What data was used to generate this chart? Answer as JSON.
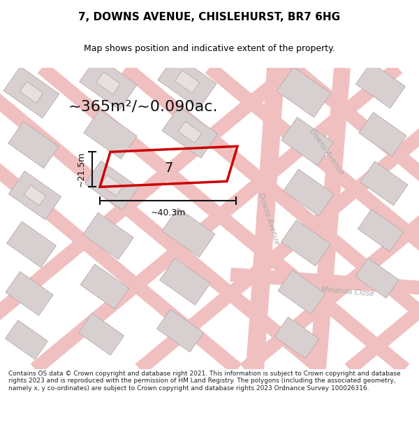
{
  "title": "7, DOWNS AVENUE, CHISLEHURST, BR7 6HG",
  "subtitle": "Map shows position and indicative extent of the property.",
  "area_text": "~365m²/~0.090ac.",
  "dim_width": "~40.3m",
  "dim_height": "~21.5m",
  "label": "7",
  "footer": "Contains OS data © Crown copyright and database right 2021. This information is subject to Crown copyright and database rights 2023 and is reproduced with the permission of HM Land Registry. The polygons (including the associated geometry, namely x, y co-ordinates) are subject to Crown copyright and database rights 2023 Ordnance Survey 100026316.",
  "bg_color": "#ffffff",
  "map_bg": "#f2eded",
  "road_color": "#f0c0c0",
  "building_fill": "#d8d0d0",
  "building_edge": "#b8a8a8",
  "plot_color": "#cc0000",
  "street_label_color": "#aaaaaa",
  "title_color": "#000000",
  "footer_color": "#222222",
  "dim_color": "#111111",
  "title_fontsize": 11,
  "subtitle_fontsize": 9,
  "area_fontsize": 16,
  "label_fontsize": 14,
  "dim_fontsize": 9,
  "street_fontsize": 7.5,
  "footer_fontsize": 6.5
}
